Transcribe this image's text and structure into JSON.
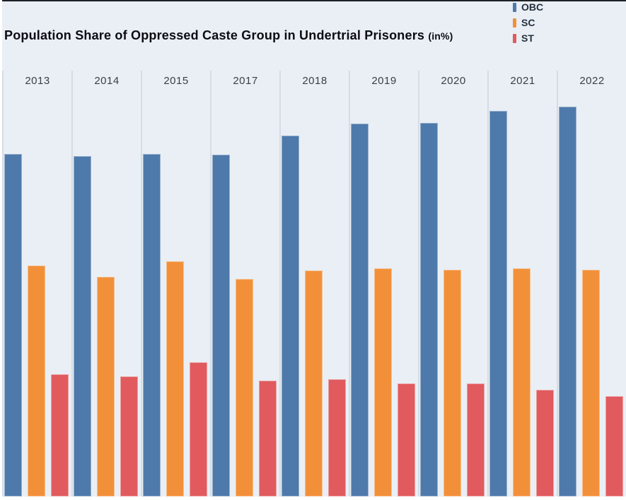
{
  "title": {
    "main": "Population Share of Oppressed Caste Group in Undertrial Prisoners",
    "suffix": "(in%)"
  },
  "legend": {
    "position": "top-right",
    "items": [
      {
        "label": "OBC",
        "color": "#4e79ab"
      },
      {
        "label": "SC",
        "color": "#f2903a"
      },
      {
        "label": "ST",
        "color": "#e05a5e"
      }
    ]
  },
  "chart_data": {
    "type": "bar",
    "title": "Population Share of Oppressed Caste Group in Undertrial Prisoners (in%)",
    "categories": [
      "2013",
      "2014",
      "2015",
      "2017",
      "2018",
      "2019",
      "2020",
      "2021",
      "2022"
    ],
    "series": [
      {
        "name": "OBC",
        "color": "#4e79ab",
        "values": [
          32.2,
          32.0,
          32.2,
          32.1,
          33.9,
          35.0,
          35.1,
          36.2,
          36.6
        ]
      },
      {
        "name": "SC",
        "color": "#f2903a",
        "values": [
          21.7,
          20.6,
          22.1,
          20.4,
          21.2,
          21.4,
          21.3,
          21.4,
          21.3
        ]
      },
      {
        "name": "ST",
        "color": "#e05a5e",
        "values": [
          11.5,
          11.3,
          12.6,
          10.9,
          11.0,
          10.6,
          10.6,
          10.0,
          9.4
        ]
      }
    ],
    "unit": "%",
    "ylim": [
      0,
      40
    ],
    "xlabel": "",
    "ylabel": "",
    "grid": "column-dividers",
    "legend_position": "top-right",
    "category_labels_position": "top"
  },
  "colors": {
    "background": "#e9eff5",
    "divider": "#d5dce2",
    "title_text": "#0c0c12",
    "year_label_text": "#3a3f45",
    "legend_text": "#25303e",
    "top_edge": "#1e2126",
    "margin": "#ffffff"
  }
}
